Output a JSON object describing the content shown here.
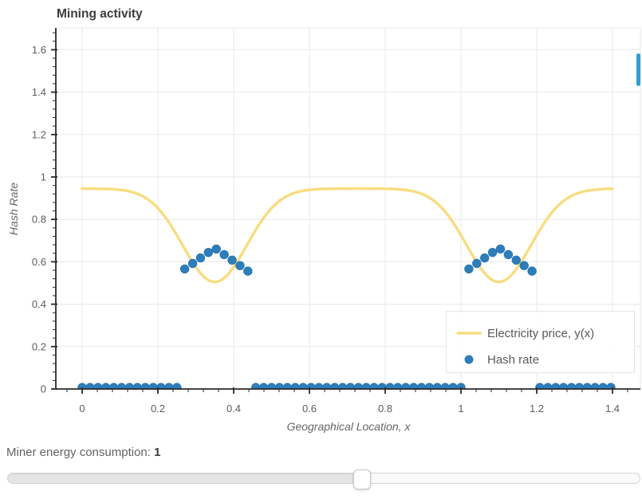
{
  "chart": {
    "title": "Mining activity",
    "x_axis": {
      "label": "Geographical Location, x",
      "tick_labels": [
        "0",
        "0.2",
        "0.4",
        "0.6",
        "0.8",
        "1",
        "1.2",
        "1.4"
      ],
      "tick_values": [
        0,
        0.2,
        0.4,
        0.6,
        0.8,
        1,
        1.2,
        1.4
      ],
      "minor_tick_step": 0.04,
      "range": [
        -0.07,
        1.474
      ]
    },
    "y_axis": {
      "label": "Hash Rate",
      "tick_labels": [
        "0",
        "0.2",
        "0.4",
        "0.6",
        "0.8",
        "1",
        "1.2",
        "1.4",
        "1.6"
      ],
      "tick_values": [
        0,
        0.2,
        0.4,
        0.6,
        0.8,
        1,
        1.2,
        1.4,
        1.6
      ],
      "minor_tick_step": 0.04,
      "range": [
        0,
        1.703
      ]
    },
    "legend": {
      "items": [
        {
          "label": "Electricity price, y(x)",
          "swatch": "line",
          "color": "#f9dc7f"
        },
        {
          "label": "Hash rate",
          "swatch": "circle",
          "color": "#2d7dbb"
        }
      ]
    },
    "colors": {
      "line": "#f9dc7f",
      "scatter": "#2d7dbb",
      "scatter_edge": "#2a74ae",
      "axis": "#2b2b2b",
      "grid": "#ececec",
      "outline": "#ececec",
      "tick_label": "#5c5c5c",
      "axis_label": "#666666",
      "title": "#3b3b3b",
      "legend_text": "#595959",
      "toolbar_indicator": "#2d9fd8"
    }
  },
  "chart_data": {
    "type": "line+scatter",
    "title": "Mining activity",
    "xlabel": "Geographical Location, x",
    "ylabel": "Hash Rate",
    "xlim": [
      -0.07,
      1.474
    ],
    "ylim": [
      0,
      1.703
    ],
    "grid": true,
    "legend_position": "bottom-right",
    "series": [
      {
        "name": "Electricity price, y(x)",
        "type": "line",
        "color": "#f9dc7f",
        "x_start": 0,
        "x_end": 1.4,
        "model": {
          "description": "baseline minus gaussian dips: y = baseline - depth*sum(exp(-((x-c)/sigma)^2))",
          "baseline": 0.945,
          "dip_depth": 0.44,
          "dip_centers": [
            -0.4,
            0.35,
            1.1,
            1.85
          ],
          "dip_sigma": 0.12,
          "y_min": 0.505,
          "y_max": 0.945
        }
      },
      {
        "name": "Hash rate",
        "type": "scatter",
        "color": "#2d7dbb",
        "points": [
          [
            0,
            0.007
          ],
          [
            0.0208,
            0.007
          ],
          [
            0.0417,
            0.007
          ],
          [
            0.0625,
            0.007
          ],
          [
            0.0833,
            0.007
          ],
          [
            0.1042,
            0.007
          ],
          [
            0.125,
            0.007
          ],
          [
            0.1458,
            0.007
          ],
          [
            0.1667,
            0.007
          ],
          [
            0.1875,
            0.007
          ],
          [
            0.2083,
            0.007
          ],
          [
            0.2292,
            0.007
          ],
          [
            0.25,
            0.007
          ],
          [
            0.2708,
            0.566
          ],
          [
            0.2917,
            0.592
          ],
          [
            0.3125,
            0.618
          ],
          [
            0.3333,
            0.644
          ],
          [
            0.3542,
            0.66
          ],
          [
            0.375,
            0.634
          ],
          [
            0.3958,
            0.608
          ],
          [
            0.4167,
            0.582
          ],
          [
            0.4375,
            0.556
          ],
          [
            0.4583,
            0.007
          ],
          [
            0.4792,
            0.007
          ],
          [
            0.5,
            0.007
          ],
          [
            0.5208,
            0.007
          ],
          [
            0.5417,
            0.007
          ],
          [
            0.5625,
            0.007
          ],
          [
            0.5833,
            0.007
          ],
          [
            0.6042,
            0.007
          ],
          [
            0.625,
            0.007
          ],
          [
            0.6458,
            0.007
          ],
          [
            0.6667,
            0.007
          ],
          [
            0.6875,
            0.007
          ],
          [
            0.7083,
            0.007
          ],
          [
            0.7292,
            0.007
          ],
          [
            0.75,
            0.007
          ],
          [
            0.7708,
            0.007
          ],
          [
            0.7917,
            0.007
          ],
          [
            0.8125,
            0.007
          ],
          [
            0.8333,
            0.007
          ],
          [
            0.8542,
            0.007
          ],
          [
            0.875,
            0.007
          ],
          [
            0.8958,
            0.007
          ],
          [
            0.9167,
            0.007
          ],
          [
            0.9375,
            0.007
          ],
          [
            0.9583,
            0.007
          ],
          [
            0.9792,
            0.007
          ],
          [
            1.0,
            0.007
          ],
          [
            1.0208,
            0.566
          ],
          [
            1.0417,
            0.592
          ],
          [
            1.0625,
            0.618
          ],
          [
            1.0833,
            0.644
          ],
          [
            1.1042,
            0.66
          ],
          [
            1.125,
            0.634
          ],
          [
            1.1458,
            0.608
          ],
          [
            1.1667,
            0.582
          ],
          [
            1.1875,
            0.556
          ],
          [
            1.2083,
            0.007
          ],
          [
            1.2292,
            0.007
          ],
          [
            1.25,
            0.007
          ],
          [
            1.2708,
            0.007
          ],
          [
            1.2917,
            0.007
          ],
          [
            1.3125,
            0.007
          ],
          [
            1.3333,
            0.007
          ],
          [
            1.3542,
            0.007
          ],
          [
            1.375,
            0.007
          ],
          [
            1.3958,
            0.007
          ]
        ]
      }
    ]
  },
  "slider": {
    "title": "Miner energy consumption: ",
    "value": "1",
    "position_pct": 56
  }
}
